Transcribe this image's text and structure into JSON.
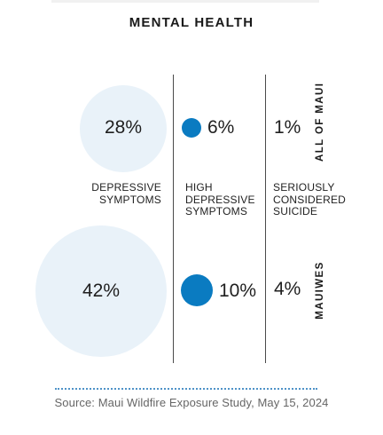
{
  "title": "MENTAL HEALTH",
  "source": "Source: Maui Wildfire Exposure Study, May 15, 2024",
  "colors": {
    "bubble": "#e9f2f9",
    "dot": "#0a7bc1",
    "divider": "#4a4a4a",
    "dotted_rule": "#4f93c8"
  },
  "chart_data": {
    "type": "table",
    "title": "MENTAL HEALTH",
    "columns": [
      {
        "label_lines": [
          "DEPRESSIVE",
          "SYMPTOMS"
        ]
      },
      {
        "label_lines": [
          "HIGH",
          "DEPRESSIVE",
          "SYMPTOMS"
        ]
      },
      {
        "label_lines": [
          "SERIOUSLY",
          "CONSIDERED",
          "SUICIDE"
        ]
      }
    ],
    "rows": [
      {
        "label": "ALL OF MAUI",
        "values": [
          28,
          6,
          1
        ],
        "labels": [
          "28%",
          "6%",
          "1%"
        ]
      },
      {
        "label": "MAUIWES",
        "values": [
          42,
          10,
          4
        ],
        "labels": [
          "42%",
          "10%",
          "4%"
        ]
      }
    ]
  }
}
